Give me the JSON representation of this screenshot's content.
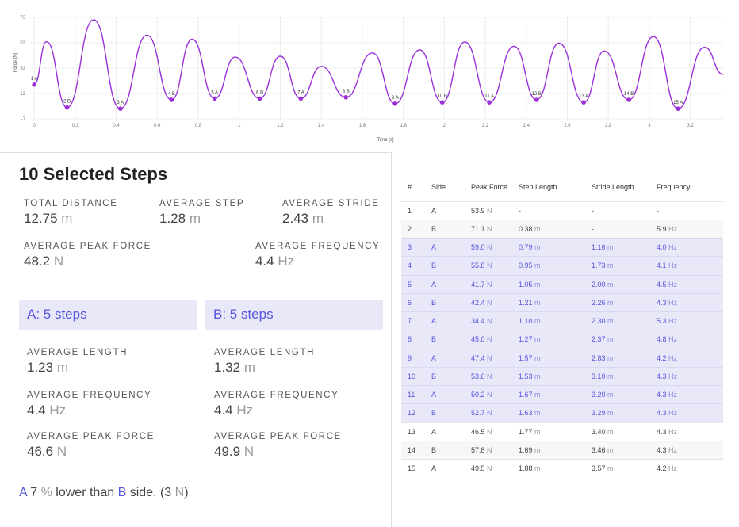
{
  "chart_data": {
    "type": "line",
    "xlabel": "Time [s]",
    "ylabel": "Force [N]",
    "xlim": [
      -0.02,
      3.36
    ],
    "ylim": [
      -7,
      73
    ],
    "y_ticks": [
      -7,
      13,
      33,
      53,
      73
    ],
    "x_ticks": [
      0,
      0.2,
      0.4,
      0.6,
      0.8,
      1,
      1.2,
      1.4,
      1.6,
      1.8,
      2,
      2.2,
      2.4,
      2.6,
      2.8,
      3,
      3.2
    ],
    "line_color": "#9b30d9",
    "series": [
      {
        "points": [
          [
            0,
            20
          ],
          [
            0.06,
            53.9
          ],
          [
            0.16,
            2
          ],
          [
            0.29,
            71.1
          ],
          [
            0.42,
            1
          ],
          [
            0.55,
            59.0
          ],
          [
            0.67,
            8
          ],
          [
            0.77,
            55.8
          ],
          [
            0.88,
            9
          ],
          [
            0.98,
            41.7
          ],
          [
            1.1,
            9
          ],
          [
            1.2,
            42.4
          ],
          [
            1.3,
            9
          ],
          [
            1.4,
            34.4
          ],
          [
            1.52,
            10
          ],
          [
            1.65,
            45.0
          ],
          [
            1.76,
            5
          ],
          [
            1.88,
            47.4
          ],
          [
            1.99,
            6
          ],
          [
            2.1,
            53.6
          ],
          [
            2.22,
            6
          ],
          [
            2.34,
            50.2
          ],
          [
            2.45,
            8
          ],
          [
            2.56,
            52.7
          ],
          [
            2.68,
            6
          ],
          [
            2.78,
            46.5
          ],
          [
            2.9,
            8
          ],
          [
            3.02,
            57.8
          ],
          [
            3.14,
            1
          ],
          [
            3.27,
            49.5
          ],
          [
            3.36,
            28
          ]
        ]
      }
    ],
    "markers": [
      {
        "label": "1 A",
        "x": 0,
        "y": 20
      },
      {
        "label": "2 B",
        "x": 0.16,
        "y": 2
      },
      {
        "label": "3 A",
        "x": 0.42,
        "y": 1
      },
      {
        "label": "4 B",
        "x": 0.67,
        "y": 8
      },
      {
        "label": "5 A",
        "x": 0.88,
        "y": 9
      },
      {
        "label": "6 B",
        "x": 1.1,
        "y": 9
      },
      {
        "label": "7 A",
        "x": 1.3,
        "y": 9
      },
      {
        "label": "8 B",
        "x": 1.52,
        "y": 10
      },
      {
        "label": "9 A",
        "x": 1.76,
        "y": 5
      },
      {
        "label": "10 B",
        "x": 1.99,
        "y": 6
      },
      {
        "label": "11 A",
        "x": 2.22,
        "y": 6
      },
      {
        "label": "12 B",
        "x": 2.45,
        "y": 8
      },
      {
        "label": "13 A",
        "x": 2.68,
        "y": 6
      },
      {
        "label": "14 B",
        "x": 2.9,
        "y": 8
      },
      {
        "label": "15 A",
        "x": 3.14,
        "y": 1
      }
    ]
  },
  "summary": {
    "title": "10 Selected Steps",
    "total_distance": {
      "label": "TOTAL DISTANCE",
      "value": "12.75",
      "unit": "m"
    },
    "average_step": {
      "label": "AVERAGE STEP",
      "value": "1.28",
      "unit": "m"
    },
    "average_stride": {
      "label": "AVERAGE STRIDE",
      "value": "2.43",
      "unit": "m"
    },
    "average_peak_force": {
      "label": "AVERAGE PEAK FORCE",
      "value": "48.2",
      "unit": "N"
    },
    "average_frequency": {
      "label": "AVERAGE FREQUENCY",
      "value": "4.4",
      "unit": "Hz"
    }
  },
  "side_a": {
    "header": "A: 5 steps",
    "avg_length": {
      "label": "AVERAGE LENGTH",
      "value": "1.23",
      "unit": "m"
    },
    "avg_frequency": {
      "label": "AVERAGE FREQUENCY",
      "value": "4.4",
      "unit": "Hz"
    },
    "avg_peak_force": {
      "label": "AVERAGE PEAK FORCE",
      "value": "46.6",
      "unit": "N"
    }
  },
  "side_b": {
    "header": "B: 5 steps",
    "avg_length": {
      "label": "AVERAGE LENGTH",
      "value": "1.32",
      "unit": "m"
    },
    "avg_frequency": {
      "label": "AVERAGE FREQUENCY",
      "value": "4.4",
      "unit": "Hz"
    },
    "avg_peak_force": {
      "label": "AVERAGE PEAK FORCE",
      "value": "49.9",
      "unit": "N"
    }
  },
  "comparison": {
    "side": "A",
    "number": "7",
    "percent_sign": "%",
    "mid_text": "lower than",
    "other_side": "B",
    "end_text": "side.",
    "paren_open": "(",
    "diff_value": "3",
    "diff_unit": "N",
    "paren_close": ")"
  },
  "table": {
    "headers": [
      "#",
      "Side",
      "Peak Force",
      "Step Length",
      "Stride Length",
      "Frequency"
    ],
    "rows": [
      {
        "n": "1",
        "side": "A",
        "force": "53.9",
        "step": "-",
        "stride": "-",
        "freq": "-",
        "selected": false
      },
      {
        "n": "2",
        "side": "B",
        "force": "71.1",
        "step": "0.38",
        "stride": "-",
        "freq": "5.9",
        "selected": false
      },
      {
        "n": "3",
        "side": "A",
        "force": "59.0",
        "step": "0.79",
        "stride": "1.16",
        "freq": "4.0",
        "selected": true
      },
      {
        "n": "4",
        "side": "B",
        "force": "55.8",
        "step": "0.95",
        "stride": "1.73",
        "freq": "4.1",
        "selected": true
      },
      {
        "n": "5",
        "side": "A",
        "force": "41.7",
        "step": "1.05",
        "stride": "2.00",
        "freq": "4.5",
        "selected": true
      },
      {
        "n": "6",
        "side": "B",
        "force": "42.4",
        "step": "1.21",
        "stride": "2.26",
        "freq": "4.3",
        "selected": true
      },
      {
        "n": "7",
        "side": "A",
        "force": "34.4",
        "step": "1.10",
        "stride": "2.30",
        "freq": "5.3",
        "selected": true
      },
      {
        "n": "8",
        "side": "B",
        "force": "45.0",
        "step": "1.27",
        "stride": "2.37",
        "freq": "4.8",
        "selected": true
      },
      {
        "n": "9",
        "side": "A",
        "force": "47.4",
        "step": "1.57",
        "stride": "2.83",
        "freq": "4.2",
        "selected": true
      },
      {
        "n": "10",
        "side": "B",
        "force": "53.6",
        "step": "1.53",
        "stride": "3.10",
        "freq": "4.3",
        "selected": true
      },
      {
        "n": "11",
        "side": "A",
        "force": "50.2",
        "step": "1.67",
        "stride": "3.20",
        "freq": "4.3",
        "selected": true
      },
      {
        "n": "12",
        "side": "B",
        "force": "52.7",
        "step": "1.63",
        "stride": "3.29",
        "freq": "4.3",
        "selected": true
      },
      {
        "n": "13",
        "side": "A",
        "force": "46.5",
        "step": "1.77",
        "stride": "3.40",
        "freq": "4.3",
        "selected": false
      },
      {
        "n": "14",
        "side": "B",
        "force": "57.8",
        "step": "1.69",
        "stride": "3.46",
        "freq": "4.3",
        "selected": false
      },
      {
        "n": "15",
        "side": "A",
        "force": "49.5",
        "step": "1.88",
        "stride": "3.57",
        "freq": "4.2",
        "selected": false
      }
    ],
    "units": {
      "force": "N",
      "step": "m",
      "stride": "m",
      "freq": "Hz"
    }
  },
  "colors": {
    "accent": "#5555dd",
    "selection": "#e8e8f9",
    "line": "#9b30d9"
  }
}
